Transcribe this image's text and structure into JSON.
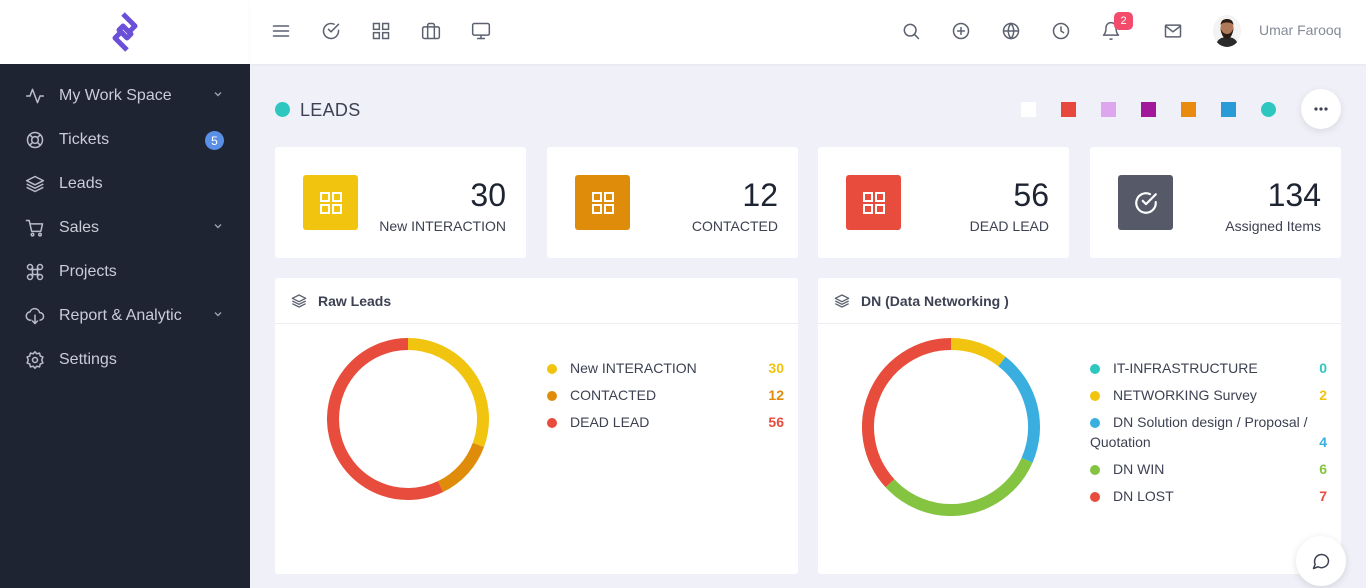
{
  "sidebar": {
    "items": [
      {
        "label": "My Work Space",
        "icon": "activity-icon",
        "chevron": true
      },
      {
        "label": "Tickets",
        "icon": "lifebuoy-icon",
        "badge": "5"
      },
      {
        "label": "Leads",
        "icon": "layers-icon"
      },
      {
        "label": "Sales",
        "icon": "cart-icon",
        "chevron": true
      },
      {
        "label": "Projects",
        "icon": "command-icon"
      },
      {
        "label": "Report & Analytic",
        "icon": "download-cloud-icon",
        "chevron": true
      },
      {
        "label": "Settings",
        "icon": "gear-icon"
      }
    ]
  },
  "topbar": {
    "left_icons": [
      "menu-icon",
      "check-circle-icon",
      "grid-icon",
      "briefcase-icon",
      "monitor-icon"
    ],
    "right_icons": [
      "search-icon",
      "plus-circle-icon",
      "globe-icon",
      "clock-icon",
      "bell-icon",
      "mail-icon"
    ],
    "notification_count": "2",
    "user_name": "Umar Farooq"
  },
  "page": {
    "title": "LEADS",
    "title_dot_color": "#2ec7c0",
    "theme_swatches": [
      "#ffffff",
      "#e8473e",
      "#dfa6f0",
      "#a2189a",
      "#e88b0f",
      "#2b9bd8",
      "#2ec7c0"
    ]
  },
  "stats": [
    {
      "value": "30",
      "label": "New INTERACTION",
      "color": "#f1c40f",
      "icon": "grid-icon"
    },
    {
      "value": "12",
      "label": "CONTACTED",
      "color": "#e08c0b",
      "icon": "grid-icon"
    },
    {
      "value": "56",
      "label": "DEAD LEAD",
      "color": "#e74c3c",
      "icon": "grid-icon"
    },
    {
      "value": "134",
      "label": "Assigned Items",
      "color": "#565968",
      "icon": "check-circle-icon"
    }
  ],
  "raw_leads": {
    "title": "Raw Leads",
    "legend": [
      {
        "label": "New INTERACTION",
        "value": "30",
        "color": "#f1c40f"
      },
      {
        "label": "CONTACTED",
        "value": "12",
        "color": "#e08c0b"
      },
      {
        "label": "DEAD LEAD",
        "value": "56",
        "color": "#e74c3c"
      }
    ]
  },
  "dn": {
    "title": "DN (Data Networking )",
    "legend": [
      {
        "label": "IT-INFRASTRUCTURE",
        "value": "0",
        "color": "#2ec7c0"
      },
      {
        "label": "NETWORKING Survey",
        "value": "2",
        "color": "#f1c40f"
      },
      {
        "label": "DN Solution design / Proposal /",
        "label2": "Quotation",
        "value": "4",
        "color": "#3aafdf"
      },
      {
        "label": "DN WIN",
        "value": "6",
        "color": "#85c440"
      },
      {
        "label": "DN LOST",
        "value": "7",
        "color": "#e74c3c"
      }
    ]
  }
}
